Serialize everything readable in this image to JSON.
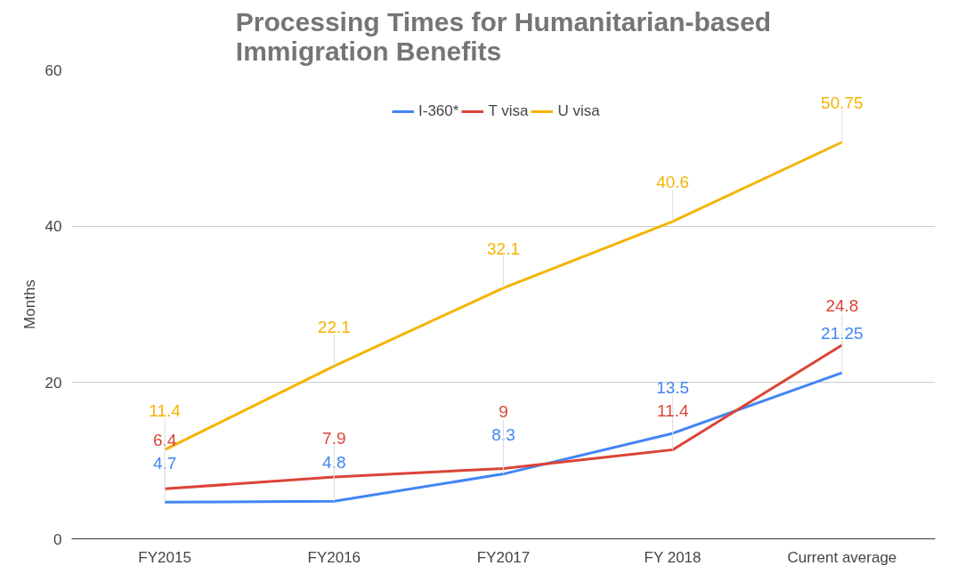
{
  "chart_data": {
    "type": "line",
    "title": "Processing Times for Humanitarian-based Immigration Benefits",
    "ylabel": "Months",
    "categories": [
      "FY2015",
      "FY2016",
      "FY2017",
      "FY 2018",
      "Current average"
    ],
    "series": [
      {
        "name": "I-360*",
        "color": "#4285f4",
        "values": [
          4.7,
          4.8,
          8.3,
          13.5,
          21.25
        ]
      },
      {
        "name": "T visa",
        "color": "#db4437",
        "values": [
          6.4,
          7.9,
          9,
          11.4,
          24.8
        ]
      },
      {
        "name": "U visa",
        "color": "#f4b400",
        "values": [
          11.4,
          22.1,
          32.1,
          40.6,
          50.75
        ]
      }
    ],
    "ylim": [
      0,
      60
    ],
    "yticks": [
      0,
      20,
      40,
      60
    ],
    "grid": "y",
    "legend": "top",
    "data_labels": true,
    "marker": "none",
    "line_style": "solid"
  }
}
